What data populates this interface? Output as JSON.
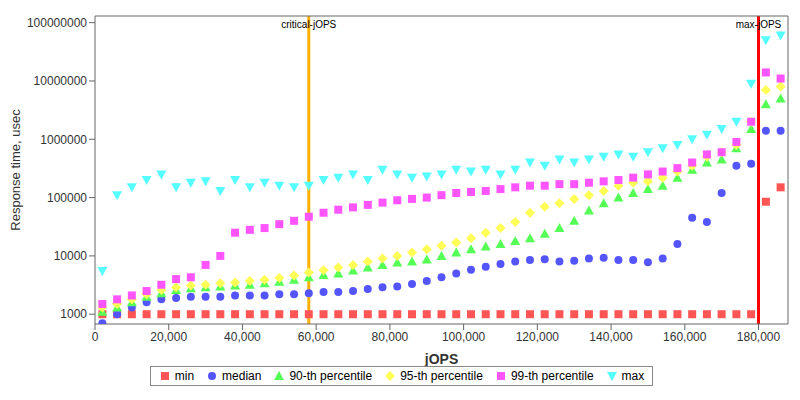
{
  "chart_data": {
    "type": "scatter",
    "x_label": "jOPS",
    "y_label": "Response time, usec",
    "log": "y",
    "grid": false,
    "legend": "bottom",
    "xlim": [
      0,
      188000
    ],
    "ylim": [
      680,
      130000000
    ],
    "xticks": [
      {
        "value": 0,
        "label": "0"
      },
      {
        "value": 20000,
        "label": "20,000"
      },
      {
        "value": 40000,
        "label": "40,000"
      },
      {
        "value": 60000,
        "label": "60,000"
      },
      {
        "value": 80000,
        "label": "80,000"
      },
      {
        "value": 100000,
        "label": "100,000"
      },
      {
        "value": 120000,
        "label": "120,000"
      },
      {
        "value": 140000,
        "label": "140,000"
      },
      {
        "value": 160000,
        "label": "160,000"
      },
      {
        "value": 180000,
        "label": "180,000"
      }
    ],
    "yticks": [
      1000,
      10000,
      100000,
      1000000,
      10000000,
      100000000
    ],
    "annotations": [
      {
        "x": 58000,
        "label": "critical-jOPS",
        "color": "#ffb000"
      },
      {
        "x": 180000,
        "label": "max-jOPS",
        "color": "#ff0000"
      }
    ],
    "x": [
      2000,
      6000,
      10000,
      14000,
      18000,
      22000,
      26000,
      30000,
      34000,
      38000,
      42000,
      46000,
      50000,
      54000,
      58000,
      62000,
      66000,
      70000,
      74000,
      78000,
      82000,
      86000,
      90000,
      94000,
      98000,
      102000,
      106000,
      110000,
      114000,
      118000,
      122000,
      126000,
      130000,
      134000,
      138000,
      142000,
      146000,
      150000,
      154000,
      158000,
      162000,
      166000,
      170000,
      174000,
      178000,
      182000,
      186000
    ],
    "series": [
      {
        "name": "min",
        "color": "#ff5555",
        "marker": "square",
        "values": [
          1000,
          1000,
          1000,
          1000,
          1000,
          1000,
          1000,
          1000,
          1000,
          1000,
          1000,
          1000,
          1000,
          1000,
          1000,
          1000,
          1000,
          1000,
          1000,
          1000,
          1000,
          1000,
          1000,
          1000,
          1000,
          1000,
          1000,
          1000,
          1000,
          1000,
          1000,
          1000,
          1000,
          1000,
          1000,
          1000,
          1000,
          1000,
          1000,
          1000,
          1000,
          1000,
          1000,
          1000,
          1000,
          85000,
          150000
        ]
      },
      {
        "name": "median",
        "color": "#5555ff",
        "marker": "circle",
        "values": [
          700,
          1000,
          1300,
          1600,
          1800,
          1900,
          2000,
          2000,
          2000,
          2100,
          2100,
          2100,
          2200,
          2200,
          2300,
          2400,
          2400,
          2500,
          2700,
          2900,
          3000,
          3300,
          3700,
          4300,
          5000,
          5800,
          6500,
          7300,
          8000,
          8500,
          8800,
          8000,
          8300,
          9000,
          9300,
          8500,
          8500,
          7800,
          9000,
          16000,
          45000,
          38000,
          120000,
          350000,
          380000,
          1400000,
          1400000
        ]
      },
      {
        "name": "90-th percentile",
        "color": "#55ff55",
        "marker": "triangle",
        "values": [
          1100,
          1300,
          1600,
          2000,
          2300,
          2600,
          2800,
          2900,
          3000,
          3100,
          3200,
          3400,
          3600,
          3900,
          4300,
          4700,
          5000,
          5600,
          6300,
          7000,
          7700,
          8000,
          8700,
          10000,
          11500,
          13000,
          14500,
          16000,
          18000,
          20000,
          24000,
          30000,
          40000,
          60000,
          80000,
          100000,
          120000,
          140000,
          160000,
          220000,
          300000,
          400000,
          450000,
          700000,
          1500000,
          4000000,
          5000000
        ]
      },
      {
        "name": "95-th percentile",
        "color": "#ffff55",
        "marker": "diamond",
        "values": [
          1300,
          1500,
          1800,
          2200,
          2600,
          2900,
          3100,
          3200,
          3400,
          3500,
          3700,
          3900,
          4200,
          4600,
          5200,
          5700,
          6300,
          7000,
          8000,
          9000,
          10000,
          11500,
          13000,
          15000,
          17000,
          20000,
          25000,
          30000,
          38000,
          55000,
          70000,
          80000,
          95000,
          110000,
          130000,
          160000,
          180000,
          190000,
          220000,
          280000,
          350000,
          500000,
          600000,
          800000,
          2000000,
          7000000,
          8000000
        ]
      },
      {
        "name": "99-th percentile",
        "color": "#ff55ff",
        "marker": "square",
        "values": [
          1500,
          1800,
          2100,
          2500,
          3200,
          4000,
          4300,
          7000,
          10000,
          25000,
          28000,
          30000,
          35000,
          40000,
          47000,
          55000,
          62000,
          68000,
          75000,
          82000,
          90000,
          95000,
          100000,
          110000,
          120000,
          125000,
          130000,
          140000,
          150000,
          160000,
          160000,
          170000,
          170000,
          180000,
          190000,
          200000,
          220000,
          250000,
          280000,
          320000,
          400000,
          550000,
          600000,
          900000,
          2000000,
          14000000,
          11000000
        ]
      },
      {
        "name": "max",
        "color": "#55ffff",
        "marker": "triangle-down",
        "values": [
          5500,
          110000,
          150000,
          200000,
          250000,
          150000,
          180000,
          190000,
          130000,
          200000,
          150000,
          180000,
          160000,
          150000,
          160000,
          200000,
          220000,
          250000,
          200000,
          300000,
          250000,
          220000,
          230000,
          250000,
          300000,
          280000,
          300000,
          250000,
          300000,
          400000,
          350000,
          450000,
          400000,
          450000,
          500000,
          550000,
          500000,
          600000,
          700000,
          800000,
          1000000,
          1200000,
          1500000,
          2000000,
          9000000,
          50000000,
          60000000
        ]
      }
    ]
  }
}
